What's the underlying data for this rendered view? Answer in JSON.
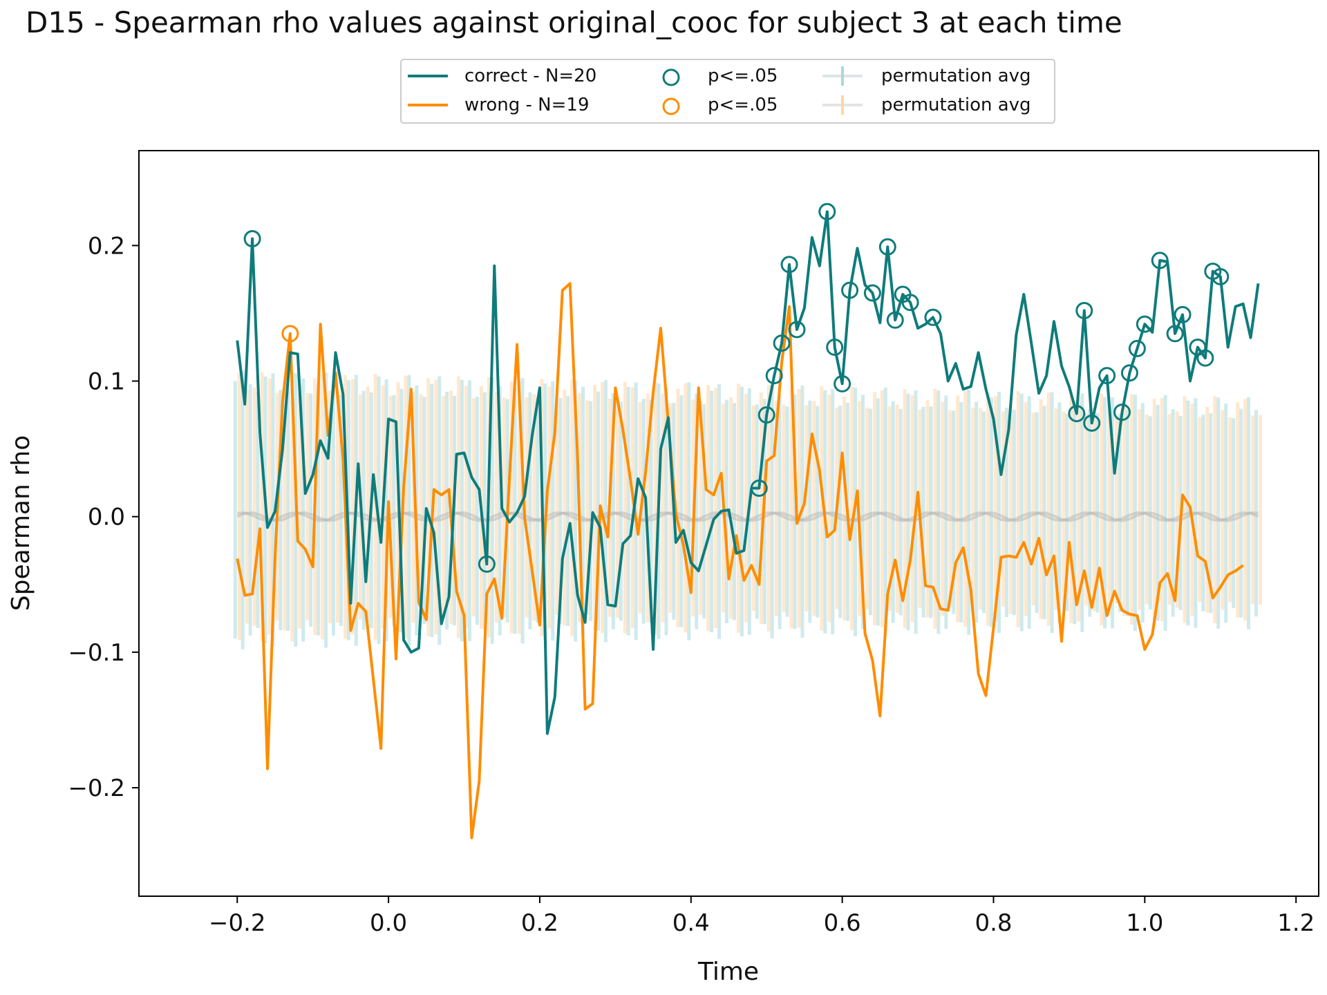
{
  "chart_data": {
    "type": "line",
    "title": "D15 - Spearman rho values against original_cooc for subject 3 at each time",
    "xlabel": "Time",
    "ylabel": "Spearman rho",
    "xlim": [
      -0.33,
      1.23
    ],
    "ylim": [
      -0.28,
      0.27
    ],
    "xticks": [
      -0.2,
      0.0,
      0.2,
      0.4,
      0.6,
      0.8,
      1.0,
      1.2
    ],
    "xtick_labels": [
      "−0.2",
      "0.0",
      "0.2",
      "0.4",
      "0.6",
      "0.8",
      "1.0",
      "1.2"
    ],
    "yticks": [
      -0.2,
      -0.1,
      0.0,
      0.1,
      0.2
    ],
    "ytick_labels": [
      "−0.2",
      "−0.1",
      "0.0",
      "0.1",
      "0.2"
    ],
    "grid": false,
    "legend_placement": "top-center-outside",
    "legend": {
      "line_correct": "correct - N=20",
      "line_wrong": "wrong - N=19",
      "sig_correct": "p<=.05",
      "sig_wrong": "p<=.05",
      "perm_correct": "permutation avg",
      "perm_wrong": "permutation avg"
    },
    "colors": {
      "correct": "#0f7b7b",
      "wrong": "#ff8c00"
    },
    "permutation_band": {
      "correct": {
        "mean": 0.0,
        "upper_start": 0.1,
        "upper_end": 0.08,
        "lower_start": -0.09,
        "lower_end": -0.075
      },
      "wrong": {
        "mean": 0.0,
        "upper_start": 0.1,
        "upper_end": 0.08,
        "lower_start": -0.085,
        "lower_end": -0.07
      }
    },
    "series": [
      {
        "name": "correct - N=20",
        "x_start": -0.2,
        "x_step": 0.01,
        "values": [
          0.13,
          0.083,
          0.205,
          0.062,
          -0.008,
          0.004,
          0.05,
          0.121,
          0.12,
          0.017,
          0.031,
          0.056,
          0.043,
          0.121,
          0.09,
          -0.064,
          0.039,
          -0.048,
          0.031,
          -0.019,
          0.072,
          0.07,
          -0.091,
          -0.1,
          -0.097,
          0.006,
          -0.012,
          -0.079,
          -0.059,
          0.046,
          0.047,
          0.029,
          0.02,
          -0.035,
          0.185,
          0.006,
          -0.004,
          0.003,
          0.015,
          0.06,
          0.095,
          -0.16,
          -0.133,
          -0.031,
          -0.005,
          -0.058,
          -0.078,
          0.003,
          -0.008,
          -0.065,
          -0.066,
          -0.02,
          -0.014,
          0.028,
          0.014,
          -0.098,
          0.05,
          0.073,
          -0.019,
          -0.01,
          -0.034,
          -0.04,
          -0.021,
          -0.002,
          0.004,
          0.005,
          -0.027,
          -0.025,
          0.021,
          0.021,
          0.075,
          0.104,
          0.128,
          0.186,
          0.138,
          0.154,
          0.206,
          0.185,
          0.225,
          0.125,
          0.098,
          0.167,
          0.198,
          0.171,
          0.165,
          0.143,
          0.199,
          0.145,
          0.164,
          0.158,
          0.139,
          0.142,
          0.147,
          0.135,
          0.1,
          0.113,
          0.094,
          0.096,
          0.121,
          0.094,
          0.072,
          0.031,
          0.064,
          0.134,
          0.164,
          0.128,
          0.091,
          0.104,
          0.144,
          0.111,
          0.096,
          0.076,
          0.152,
          0.069,
          0.095,
          0.104,
          0.032,
          0.077,
          0.106,
          0.124,
          0.142,
          0.136,
          0.189,
          0.188,
          0.135,
          0.149,
          0.1,
          0.125,
          0.117,
          0.181,
          0.177,
          0.125,
          0.155,
          0.157,
          0.132,
          0.172
        ]
      },
      {
        "name": "wrong - N=19",
        "x_start": -0.2,
        "x_step": 0.01,
        "values": [
          -0.031,
          -0.058,
          -0.057,
          -0.009,
          -0.186,
          -0.03,
          0.085,
          0.135,
          -0.018,
          -0.024,
          -0.037,
          0.142,
          0.06,
          0.106,
          0.042,
          -0.084,
          -0.064,
          -0.07,
          -0.12,
          -0.171,
          0.011,
          -0.105,
          0.021,
          0.094,
          -0.063,
          -0.076,
          0.02,
          0.016,
          0.02,
          -0.055,
          -0.073,
          -0.237,
          -0.195,
          -0.057,
          -0.046,
          -0.075,
          0.029,
          0.127,
          -0.001,
          -0.04,
          -0.08,
          0.019,
          0.062,
          0.167,
          0.172,
          0.043,
          -0.142,
          -0.138,
          0.008,
          -0.015,
          0.095,
          0.064,
          0.027,
          -0.013,
          0.033,
          0.092,
          0.139,
          0.069,
          0.002,
          -0.021,
          -0.056,
          0.095,
          0.02,
          0.016,
          0.032,
          -0.046,
          -0.014,
          -0.047,
          -0.036,
          -0.05,
          0.041,
          0.045,
          0.114,
          0.155,
          -0.005,
          0.01,
          0.061,
          0.034,
          -0.015,
          -0.01,
          0.047,
          -0.017,
          0.019,
          -0.086,
          -0.106,
          -0.147,
          -0.057,
          -0.032,
          -0.062,
          -0.032,
          0.018,
          -0.051,
          -0.052,
          -0.068,
          -0.069,
          -0.034,
          -0.023,
          -0.054,
          -0.116,
          -0.132,
          -0.082,
          -0.03,
          -0.029,
          -0.03,
          -0.019,
          -0.035,
          -0.016,
          -0.043,
          -0.029,
          -0.092,
          -0.019,
          -0.065,
          -0.04,
          -0.067,
          -0.038,
          -0.073,
          -0.055,
          -0.069,
          -0.072,
          -0.073,
          -0.098,
          -0.087,
          -0.049,
          -0.042,
          -0.062,
          0.016,
          0.007,
          -0.029,
          -0.033,
          -0.06,
          -0.052,
          -0.043,
          -0.04,
          -0.036
        ]
      }
    ],
    "significant_points": {
      "correct_x": [
        -0.18,
        0.13,
        0.49,
        0.5,
        0.51,
        0.52,
        0.53,
        0.54,
        0.58,
        0.59,
        0.6,
        0.61,
        0.64,
        0.66,
        0.67,
        0.68,
        0.69,
        0.72,
        0.91,
        0.92,
        0.93,
        0.95,
        0.97,
        0.98,
        0.99,
        1.0,
        1.02,
        1.04,
        1.05,
        1.07,
        1.08,
        1.09,
        1.1
      ],
      "wrong_x": [
        -0.13
      ]
    }
  }
}
